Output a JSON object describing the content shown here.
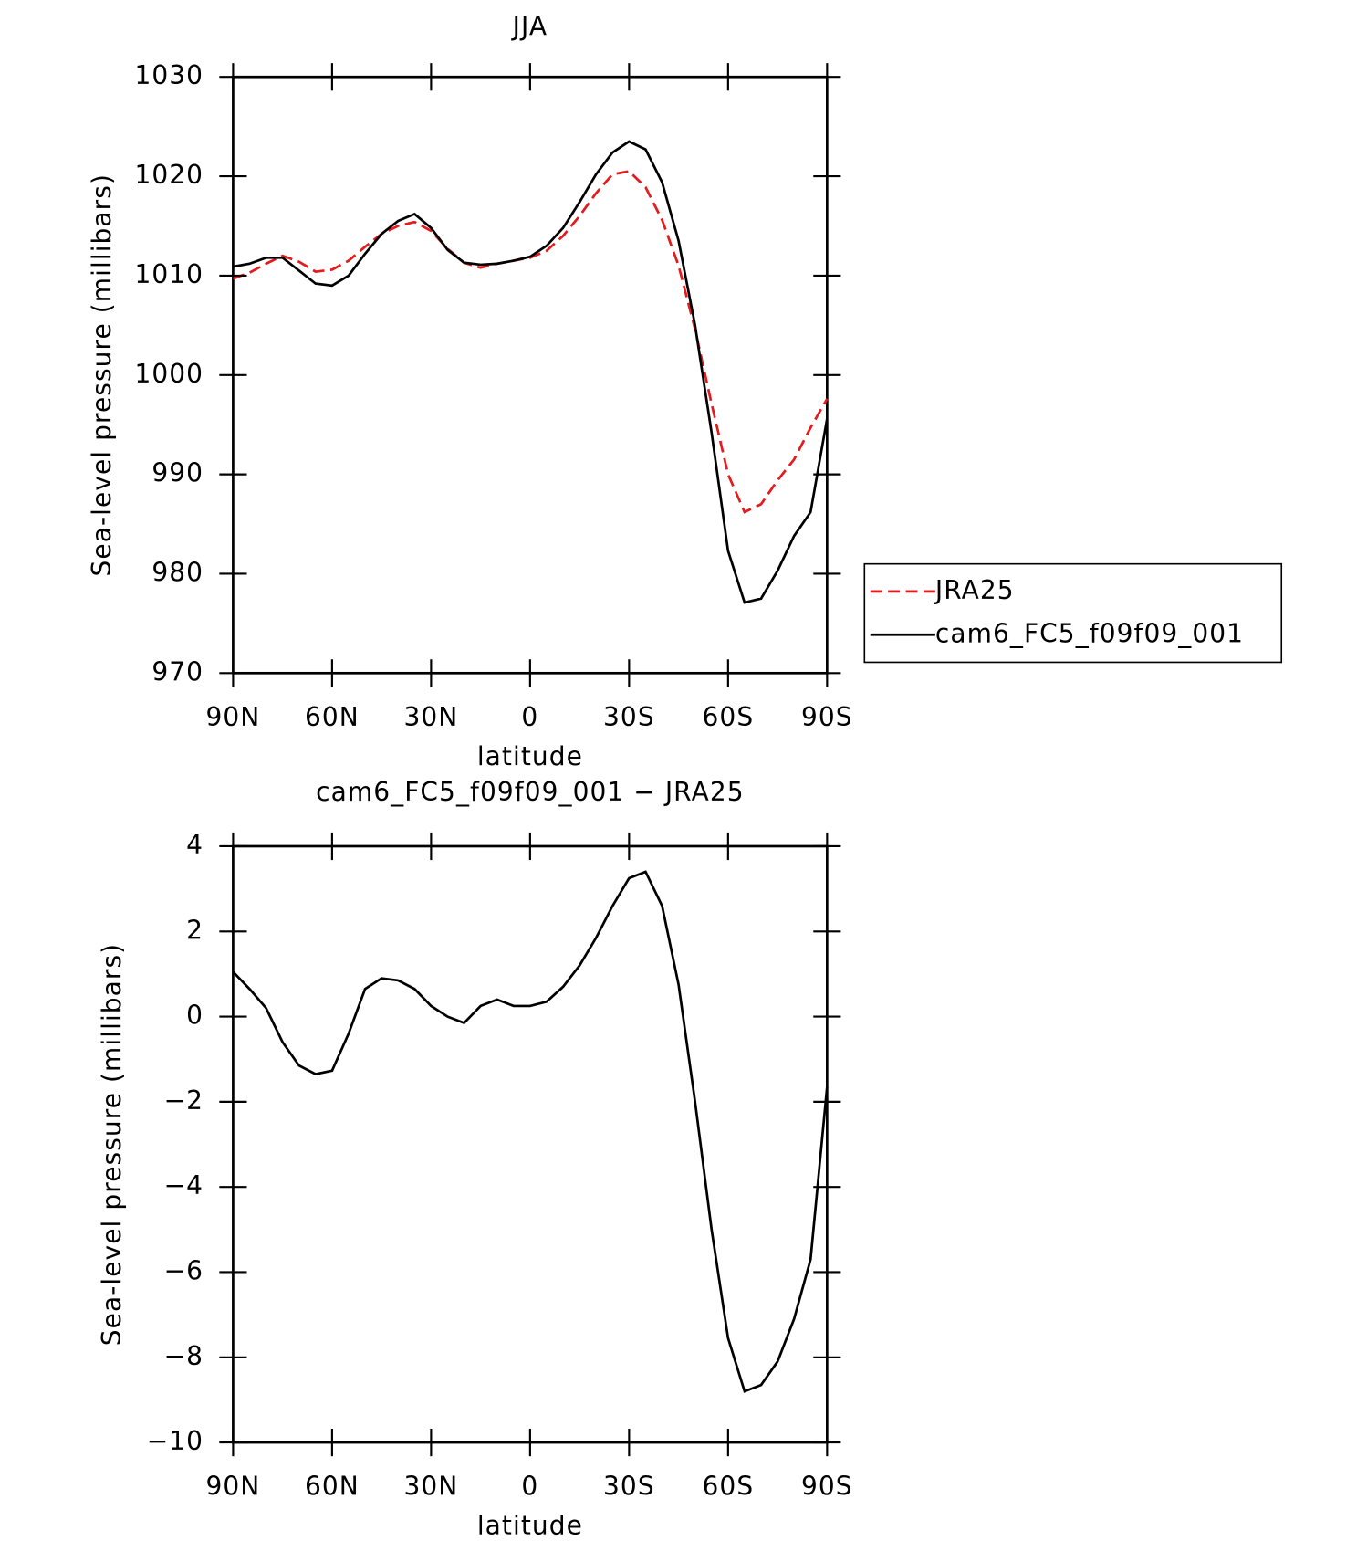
{
  "chart_data": [
    {
      "type": "line",
      "title": "JJA",
      "x_label": "latitude",
      "y_label": "Sea-level pressure (millibars)",
      "x": [
        90,
        85,
        80,
        75,
        70,
        65,
        60,
        55,
        50,
        45,
        40,
        35,
        30,
        25,
        20,
        15,
        10,
        5,
        0,
        -5,
        -10,
        -15,
        -20,
        -25,
        -30,
        -35,
        -40,
        -45,
        -50,
        -55,
        -60,
        -65,
        -70,
        -75,
        -80,
        -85,
        -90
      ],
      "series": [
        {
          "name": "JRA25",
          "color": "#e41a1c",
          "line_style": "dashed",
          "values": [
            1009.7,
            1010.3,
            1011.2,
            1012.0,
            1011.4,
            1010.4,
            1010.6,
            1011.5,
            1012.9,
            1014.2,
            1015.0,
            1015.4,
            1014.5,
            1012.7,
            1011.3,
            1010.8,
            1011.2,
            1011.5,
            1011.8,
            1012.5,
            1014.0,
            1016.0,
            1018.3,
            1020.2,
            1020.5,
            1018.9,
            1015.6,
            1011.0,
            1004.6,
            997.1,
            990.0,
            986.2,
            987.0,
            989.4,
            991.5,
            994.7,
            997.6
          ]
        },
        {
          "name": "cam6_FC5_f09f09_001",
          "color": "#000000",
          "line_style": "solid",
          "values": [
            1010.9,
            1011.2,
            1011.8,
            1011.8,
            1010.5,
            1009.2,
            1009.0,
            1010.0,
            1012.2,
            1014.2,
            1015.5,
            1016.2,
            1014.8,
            1012.6,
            1011.3,
            1011.1,
            1011.2,
            1011.5,
            1011.9,
            1013.0,
            1014.8,
            1017.4,
            1020.2,
            1022.4,
            1023.5,
            1022.7,
            1019.4,
            1013.5,
            1005.0,
            994.2,
            982.3,
            977.1,
            977.5,
            980.3,
            983.8,
            986.2,
            995.6
          ]
        }
      ],
      "xlim": [
        90,
        -90
      ],
      "xticks": [
        {
          "value": 90,
          "label": "90N"
        },
        {
          "value": 60,
          "label": "60N"
        },
        {
          "value": 30,
          "label": "30N"
        },
        0,
        {
          "value": -30,
          "label": "30S"
        },
        {
          "value": -60,
          "label": "60S"
        },
        {
          "value": -90,
          "label": "90S"
        }
      ],
      "ylim": [
        970,
        1030
      ],
      "yticks": [
        970,
        980,
        990,
        1000,
        1010,
        1020,
        1030
      ],
      "legend": "outside-right"
    },
    {
      "type": "line",
      "title": "cam6_FC5_f09f09_001 − JRA25",
      "x_label": "latitude",
      "y_label": "Sea-level pressure (millibars)",
      "x": [
        90,
        85,
        80,
        75,
        70,
        65,
        60,
        55,
        50,
        45,
        40,
        35,
        30,
        25,
        20,
        15,
        10,
        5,
        0,
        -5,
        -10,
        -15,
        -20,
        -25,
        -30,
        -35,
        -40,
        -45,
        -50,
        -55,
        -60,
        -65,
        -70,
        -75,
        -80,
        -85,
        -90
      ],
      "series": [
        {
          "color": "#000000",
          "line_style": "solid",
          "values": [
            1.05,
            0.65,
            0.2,
            -0.6,
            -1.15,
            -1.35,
            -1.27,
            -0.4,
            0.65,
            0.9,
            0.85,
            0.65,
            0.25,
            0,
            -0.15,
            0.25,
            0.4,
            0.25,
            0.25,
            0.35,
            0.7,
            1.2,
            1.85,
            2.6,
            3.25,
            3.4,
            2.6,
            0.75,
            -2.0,
            -5.0,
            -7.55,
            -8.8,
            -8.65,
            -8.1,
            -7.1,
            -5.7,
            -1.65
          ]
        }
      ],
      "xlim": [
        90,
        -90
      ],
      "xticks": [
        {
          "value": 90,
          "label": "90N"
        },
        {
          "value": 60,
          "label": "60N"
        },
        {
          "value": 30,
          "label": "30N"
        },
        0,
        {
          "value": -30,
          "label": "30S"
        },
        {
          "value": -60,
          "label": "60S"
        },
        {
          "value": -90,
          "label": "90S"
        }
      ],
      "ylim": [
        -10,
        4
      ],
      "yticks": [
        {
          "value": -10,
          "label": "−10"
        },
        {
          "value": -8,
          "label": "−8"
        },
        {
          "value": -6,
          "label": "−6"
        },
        {
          "value": -4,
          "label": "−4"
        },
        {
          "value": -2,
          "label": "−2"
        },
        0,
        2,
        4
      ]
    }
  ]
}
